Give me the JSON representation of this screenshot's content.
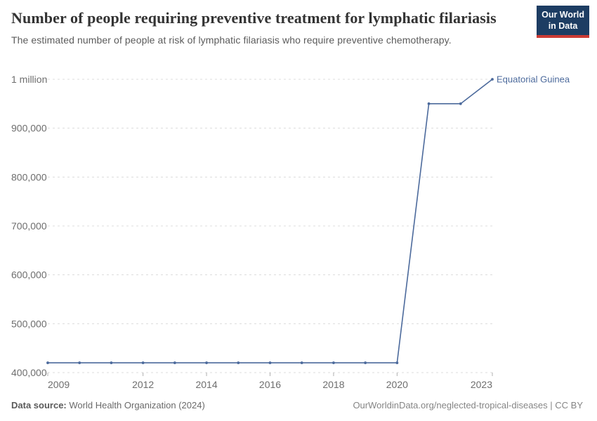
{
  "logo": {
    "line1": "Our World",
    "line2": "in Data"
  },
  "colors": {
    "series_line": "#4c6a9c",
    "logo_background": "#1d3d63",
    "logo_underline": "#cc3b34"
  },
  "chart_data": {
    "type": "line",
    "title": "Number of people requiring preventive treatment for lymphatic filariasis",
    "subtitle": "The estimated number of people at risk of lymphatic filariasis who require preventive chemotherapy.",
    "x": [
      2009,
      2010,
      2011,
      2012,
      2013,
      2014,
      2015,
      2016,
      2017,
      2018,
      2019,
      2020,
      2021,
      2022,
      2023
    ],
    "series": [
      {
        "name": "Equatorial Guinea",
        "color": "#4c6a9c",
        "values": [
          420000,
          420000,
          420000,
          420000,
          420000,
          420000,
          420000,
          420000,
          420000,
          420000,
          420000,
          420000,
          950000,
          950000,
          1000000
        ]
      }
    ],
    "xlim": [
      2009,
      2023
    ],
    "ylim": [
      400000,
      1000000
    ],
    "yticks": [
      {
        "value": 400000,
        "label": "400,000"
      },
      {
        "value": 500000,
        "label": "500,000"
      },
      {
        "value": 600000,
        "label": "600,000"
      },
      {
        "value": 700000,
        "label": "700,000"
      },
      {
        "value": 800000,
        "label": "800,000"
      },
      {
        "value": 900000,
        "label": "900,000"
      },
      {
        "value": 1000000,
        "label": "1 million"
      }
    ],
    "xticks": [
      {
        "year": 2009,
        "label": "2009",
        "align": "start"
      },
      {
        "year": 2012,
        "label": "2012",
        "align": "middle"
      },
      {
        "year": 2014,
        "label": "2014",
        "align": "middle"
      },
      {
        "year": 2016,
        "label": "2016",
        "align": "middle"
      },
      {
        "year": 2018,
        "label": "2018",
        "align": "middle"
      },
      {
        "year": 2020,
        "label": "2020",
        "align": "middle"
      },
      {
        "year": 2023,
        "label": "2023",
        "align": "end"
      }
    ],
    "grid": "horizontal-dashed",
    "legend_position": "end-of-line-label"
  },
  "footer": {
    "datasource_label": "Data source:",
    "datasource_value": "World Health Organization (2024)",
    "url": "OurWorldinData.org/neglected-tropical-diseases | CC BY"
  }
}
